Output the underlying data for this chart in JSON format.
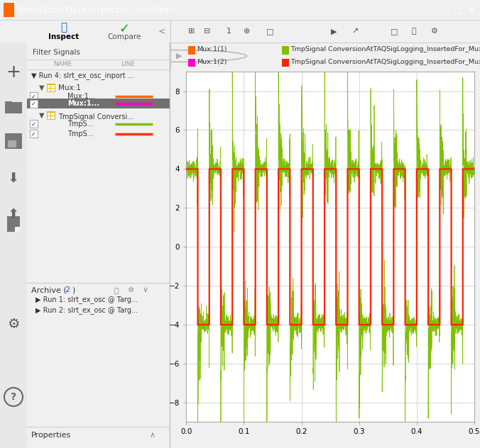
{
  "title": "Simulation Data Inspector - untitled*",
  "title_bar_color": "#0078d4",
  "bg_color": "#f0f0f0",
  "panel_bg": "#f5f5f5",
  "plot_bg": "#ffffff",
  "plot_grid_color": "#d0d0d0",
  "legend_entries": [
    {
      "label": "Mux:1(1)",
      "color": "#ff6600"
    },
    {
      "label": "TmpSignal ConversionAtTAQSigLogging_InsertedFor_Mux_at_outpor...",
      "color": "#80c000"
    },
    {
      "label": "Mux:1(2)",
      "color": "#ff00cc"
    },
    {
      "label": "TmpSignal ConversionAtTAQSigLogging_InsertedFor_Mux_at_outpor...",
      "color": "#ff2200"
    }
  ],
  "xlim": [
    0,
    0.5
  ],
  "ylim": [
    -9,
    9
  ],
  "xticks": [
    0,
    0.1,
    0.2,
    0.3,
    0.4,
    0.5
  ],
  "yticks": [
    -8,
    -6,
    -4,
    -2,
    0,
    2,
    4,
    6,
    8
  ],
  "square_wave_amplitude": 4.0,
  "square_wave_period": 0.04,
  "spike_amplitude": 4.5,
  "num_points": 3000,
  "archive_text": "Archive (",
  "archive_num": "2",
  "archive_close": ")",
  "archive_runs": [
    "Run 1: slrt_ex_osc @ Targ...",
    "Run 2: slrt_ex_osc @ Targ..."
  ],
  "inspect_tab": "Inspect",
  "compare_tab": "Compare",
  "filter_signals": "Filter Signals",
  "properties_text": "Properties"
}
